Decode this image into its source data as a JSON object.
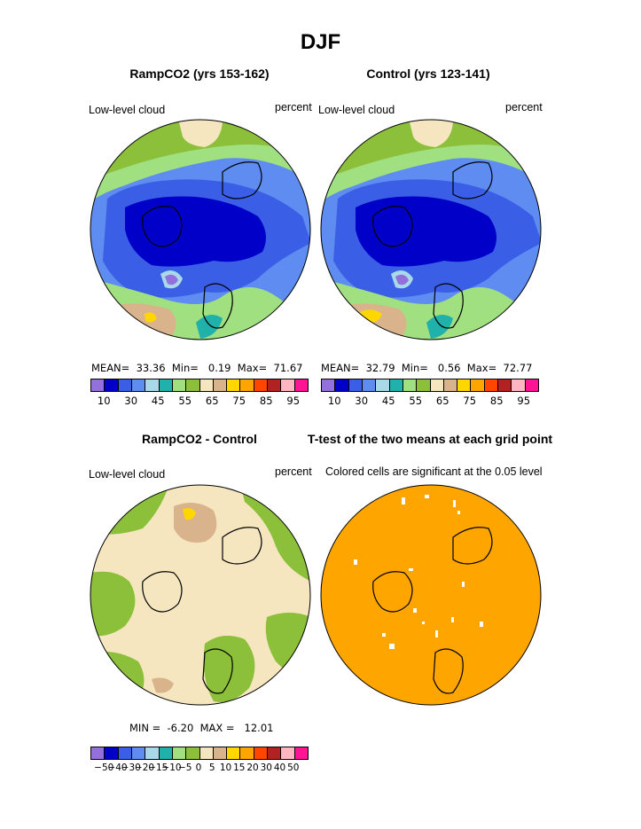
{
  "title": "DJF",
  "panels": [
    {
      "title": "RampCO2 (yrs 153-162)",
      "var_label": "Low-level cloud",
      "units": "percent",
      "stats": {
        "mean_label": "MEAN=",
        "mean": "33.36",
        "min_label": "Min=",
        "min": "0.19",
        "max_label": "Max=",
        "max": "71.67"
      }
    },
    {
      "title": "Control (yrs 123-141)",
      "var_label": "Low-level cloud",
      "units": "percent",
      "stats": {
        "mean_label": "MEAN=",
        "mean": "32.79",
        "min_label": "Min=",
        "min": "0.56",
        "max_label": "Max=",
        "max": "72.77"
      }
    },
    {
      "title": "RampCO2 - Control",
      "var_label": "Low-level cloud",
      "units": "percent",
      "stats": {
        "min_label": "MIN =",
        "min": "-6.20",
        "max_label": "MAX =",
        "max": "12.01"
      }
    },
    {
      "title": "T-test of the two means at each grid point",
      "var_label": "Colored cells are significant at the 0.05 level"
    }
  ],
  "colorbar_abs": {
    "colors": [
      "#9370db",
      "#0000c8",
      "#3a5fe6",
      "#5e8cf0",
      "#a9d9e8",
      "#20b2aa",
      "#a0e080",
      "#8cbf3a",
      "#f5e6c0",
      "#d9b38c",
      "#ffd700",
      "#ffa500",
      "#ff4500",
      "#b22222",
      "#ffb6c1",
      "#ff1493"
    ],
    "labels": [
      "10",
      "30",
      "45",
      "55",
      "65",
      "75",
      "85",
      "95"
    ]
  },
  "colorbar_diff": {
    "colors": [
      "#9370db",
      "#0000c8",
      "#3a5fe6",
      "#5e8cf0",
      "#a9d9e8",
      "#20b2aa",
      "#a0e080",
      "#8cbf3a",
      "#f5e6c0",
      "#d9b38c",
      "#ffd700",
      "#ffa500",
      "#ff4500",
      "#b22222",
      "#ffb6c1",
      "#ff1493"
    ],
    "labels": [
      "−50",
      "−40",
      "−30",
      "−20",
      "−15",
      "−10",
      "−5",
      "0",
      "5",
      "10",
      "15",
      "20",
      "30",
      "40",
      "50"
    ]
  },
  "map_colors": {
    "dark_blue": "#0000c8",
    "blue": "#3a5fe6",
    "mid_blue": "#5e8cf0",
    "light_blue": "#a9d9e8",
    "teal": "#20b2aa",
    "light_green": "#a0e080",
    "green": "#8cbf3a",
    "cream": "#f5e6c0",
    "tan": "#d9b38c",
    "yellow": "#ffd700",
    "orange": "#ffa500",
    "purple": "#9370db"
  }
}
